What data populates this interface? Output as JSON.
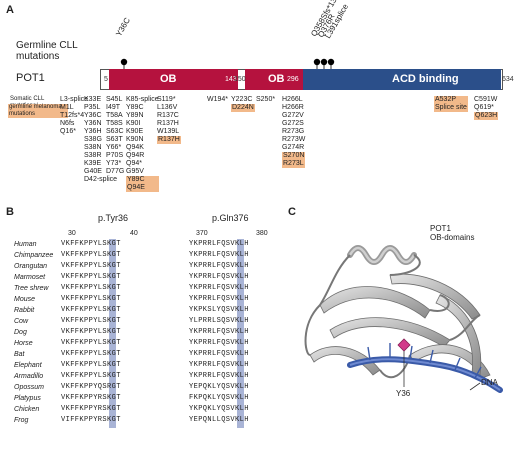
{
  "panel_labels": {
    "a": "A",
    "b": "B",
    "c": "C"
  },
  "panel_a": {
    "germline_title_line1": "Germline CLL",
    "germline_title_line2": "mutations",
    "protein_name": "POT1",
    "germline_mutations": [
      "Y36C",
      "Q358Sfs*13",
      "Q376R",
      "L391splice"
    ],
    "domains": [
      {
        "label": "OB",
        "start": "5",
        "end": "143"
      },
      {
        "label": "OB",
        "start": "150",
        "end": "296"
      },
      {
        "label": "ACD binding",
        "end": "634"
      }
    ],
    "legend_somatic": "Somatic CLL mutations/",
    "legend_germline": "germline melanoma mutations",
    "columns": [
      [
        "L3-splice",
        "M1L",
        "T12fs*4",
        "N6fs",
        "Q16*"
      ],
      [
        "K33E",
        "P35L",
        "Y36C",
        "Y36N",
        "Y36H",
        "S38G",
        "S38N",
        "S38R",
        "K39E",
        "G40E",
        "D42-splice"
      ],
      [
        "S45L",
        "I49T",
        "T58A",
        "T58S",
        "S63C",
        "S63T",
        "Y66*",
        "P70S",
        "Y73*",
        "D77G"
      ],
      [
        "K85-splice",
        "Y89C",
        "Y89N",
        "K90I",
        "K90E",
        "K90N",
        "Q94K",
        "Q94R",
        "Q94*",
        "G95V",
        "Y89C",
        "Q94E"
      ],
      [
        "S119*",
        "L136V",
        "R137C",
        "R137H",
        "W139L",
        "R137H"
      ],
      [
        "W194*"
      ],
      [
        "Y223C",
        "D224N"
      ],
      [
        "S250*"
      ],
      [
        "H266L",
        "H266R",
        "G272V",
        "G272S",
        "R273G",
        "R273W",
        "G274R",
        "S270N",
        "R273L"
      ],
      [
        "A532P",
        "Splice site"
      ],
      [
        "C591W",
        "Q619*",
        "Q623H"
      ]
    ]
  },
  "panel_b": {
    "region1_label": "p.Tyr36",
    "region2_label": "p.Gln376",
    "ticks1": [
      "30",
      "40"
    ],
    "ticks2": [
      "370",
      "380"
    ],
    "species": [
      "Human",
      "Chimpanzee",
      "Orangutan",
      "Marmoset",
      "Tree shrew",
      "Mouse",
      "Rabbit",
      "Cow",
      "Dog",
      "Horse",
      "Bat",
      "Elephant",
      "Armadillo",
      "Opossum",
      "Platypus",
      "Chicken",
      "Frog"
    ],
    "seq1": [
      "VKFFKPPYLSKGT",
      "VKFFKPPYLSKGT",
      "VKFFKPPYLSKGT",
      "VKFFKPPYLSKGT",
      "VKFFKPPYLSKGT",
      "VKFFKPPYLSKGT",
      "VKFFKPPYLSKGT",
      "VKFFKPPYLSKGT",
      "VKFFKPPYLSKGT",
      "VKFFKPPYLSKGT",
      "VKFFKPPYLSKGT",
      "VKFFKPPYLSKGT",
      "VKFFKPPYLSKGT",
      "VKFFKPPYQSRGT",
      "VKFFKPPYRSKGT",
      "VKFFKPPYRSKGT",
      "VIFFKPPYRSKGT"
    ],
    "seq2": [
      "YKPRRLFQSVKLH",
      "YKPRRLFQSVKLH",
      "YKPRRLFQSVKLH",
      "YKPRRLFQSVKLH",
      "YKPRRLFQSVKLH",
      "YKPRRLFQSVKLH",
      "YKPKSLYQSVKLH",
      "YLPRRLSQSVKLH",
      "YKPRRLFQSVKLH",
      "YKPRRLFQSVKLH",
      "YKPRRLFQSVKLH",
      "YKPRRLFQSVKLH",
      "YKPRRLFQSVKLH",
      "YEPQKLYQSVKLH",
      "FKPQKLYQSVKLH",
      "YKPQKLYQSVKLH",
      "YEPQNLLQSVKLH"
    ]
  },
  "panel_c": {
    "label_line1": "POT1",
    "label_line2": "OB-domains",
    "dna_label": "DNA",
    "residue_label": "Y36"
  },
  "colors": {
    "ob_domain": "#b5123e",
    "acd_domain": "#2b4f8a",
    "highlight": "#f2b98a",
    "conserved": "#a9b4d6",
    "dna": "#3a5aa8"
  }
}
